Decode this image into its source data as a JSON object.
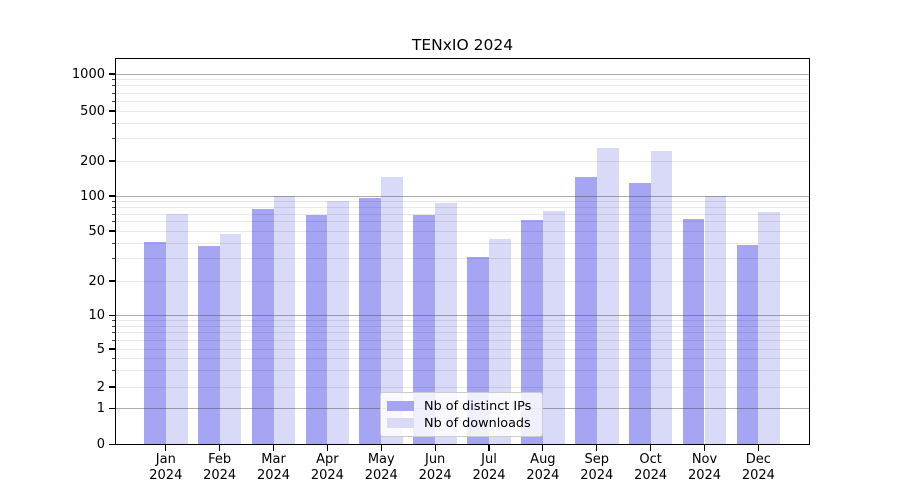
{
  "chart_data": {
    "type": "bar",
    "title": "TENxIO 2024",
    "categories": [
      {
        "month": "Jan",
        "year": "2024"
      },
      {
        "month": "Feb",
        "year": "2024"
      },
      {
        "month": "Mar",
        "year": "2024"
      },
      {
        "month": "Apr",
        "year": "2024"
      },
      {
        "month": "May",
        "year": "2024"
      },
      {
        "month": "Jun",
        "year": "2024"
      },
      {
        "month": "Jul",
        "year": "2024"
      },
      {
        "month": "Aug",
        "year": "2024"
      },
      {
        "month": "Sep",
        "year": "2024"
      },
      {
        "month": "Oct",
        "year": "2024"
      },
      {
        "month": "Nov",
        "year": "2024"
      },
      {
        "month": "Dec",
        "year": "2024"
      }
    ],
    "series": [
      {
        "name": "Nb of distinct IPs",
        "color": "#a5a5f3",
        "values": [
          41,
          38,
          78,
          68,
          96,
          68,
          31,
          62,
          145,
          130,
          64,
          39
        ]
      },
      {
        "name": "Nb of downloads",
        "color": "#d9d9f8",
        "values": [
          70,
          47,
          100,
          91,
          145,
          87,
          43,
          75,
          255,
          240,
          100,
          73
        ]
      }
    ],
    "y_axis": {
      "scale": "symlog",
      "ticks": [
        {
          "value": 1000,
          "label": "1000"
        },
        {
          "value": 500,
          "label": "500"
        },
        {
          "value": 200,
          "label": "200"
        },
        {
          "value": 100,
          "label": "100"
        },
        {
          "value": 50,
          "label": "50"
        },
        {
          "value": 20,
          "label": "20"
        },
        {
          "value": 10,
          "label": "10"
        },
        {
          "value": 5,
          "label": "5"
        },
        {
          "value": 2,
          "label": "2"
        },
        {
          "value": 1,
          "label": "1"
        },
        {
          "value": 0,
          "label": "0"
        }
      ],
      "major_gridline_values": [
        1,
        10,
        100,
        1000
      ],
      "ylim": [
        0,
        1340
      ]
    },
    "grid": true,
    "legend_position": "lower center",
    "colors": {
      "minor_grid": "#e8e8e8",
      "major_grid": "#b0b0b0",
      "spine": "#000000",
      "background": "#ffffff"
    }
  }
}
